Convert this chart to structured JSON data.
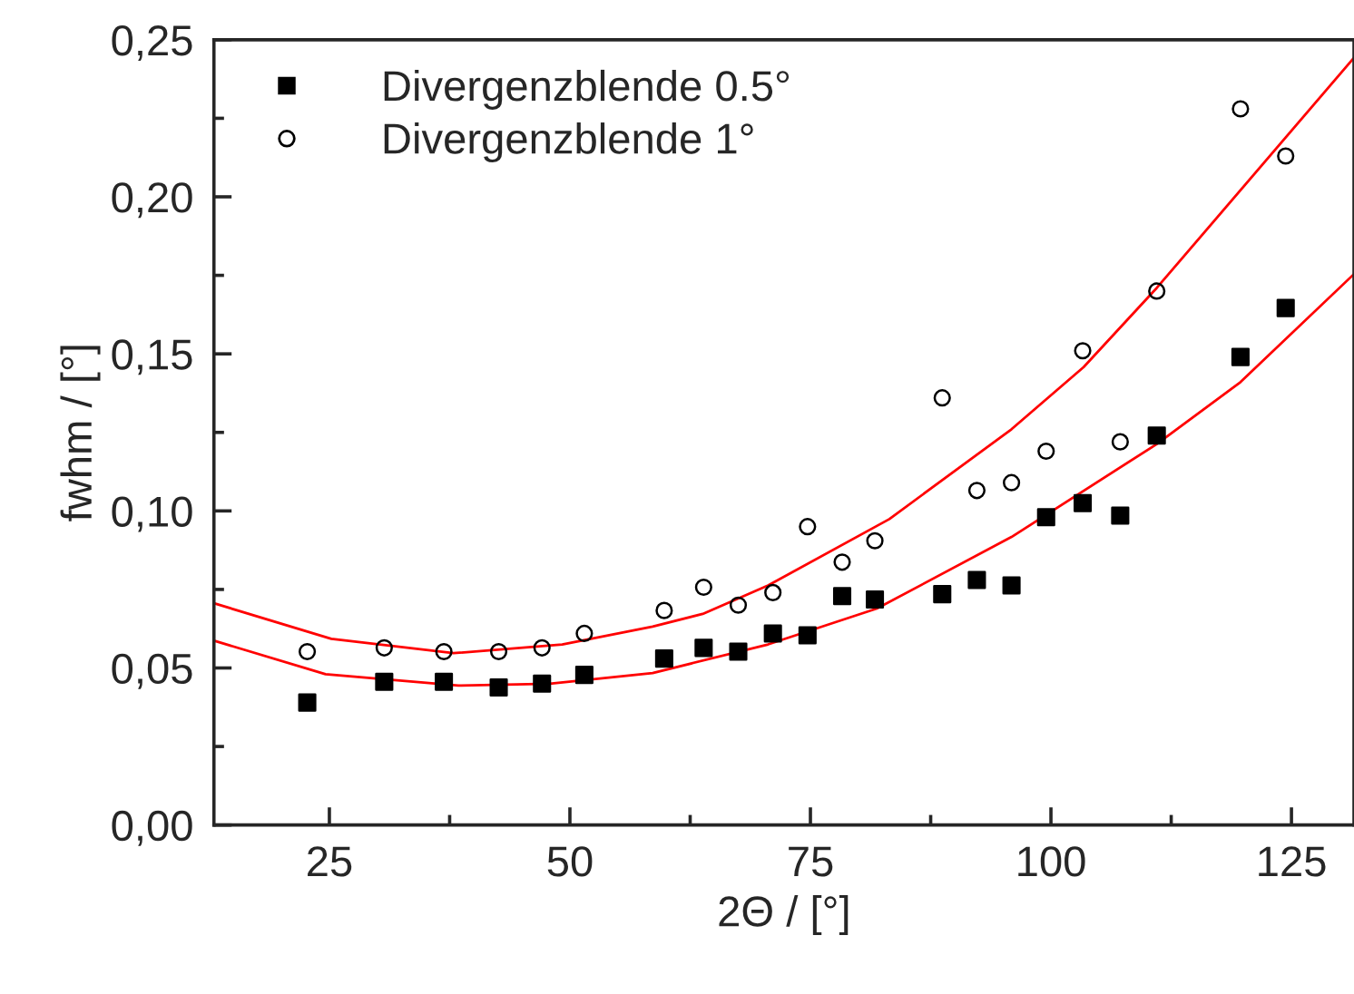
{
  "chart_data": {
    "type": "scatter",
    "xlabel": "2Θ / [°]",
    "ylabel": "fwhm / [°]",
    "legend": "top left",
    "grid": false,
    "xlim": [
      13,
      131.5
    ],
    "ylim": [
      0,
      0.25
    ],
    "xticks": [
      25,
      {
        "value": 37.5,
        "label": null
      },
      50,
      {
        "value": 62.5,
        "label": null
      },
      75,
      {
        "value": 87.5,
        "label": null
      },
      100,
      {
        "value": 112.5,
        "label": null
      },
      125
    ],
    "yticks": [
      {
        "value": 0,
        "label": "0,00"
      },
      {
        "value": 0.025,
        "label": null
      },
      {
        "value": 0.05,
        "label": "0,05"
      },
      {
        "value": 0.075,
        "label": null
      },
      {
        "value": 0.1,
        "label": "0,10"
      },
      {
        "value": 0.125,
        "label": null
      },
      {
        "value": 0.15,
        "label": "0,15"
      },
      {
        "value": 0.175,
        "label": null
      },
      {
        "value": 0.2,
        "label": "0,20"
      },
      {
        "value": 0.225,
        "label": null
      },
      {
        "value": 0.25,
        "label": "0,25"
      }
    ],
    "series": [
      {
        "name": "Divergenzblende 0.5°",
        "marker": "square",
        "color": "#000000",
        "x": [
          22.7,
          30.7,
          36.9,
          42.6,
          47.1,
          51.5,
          59.8,
          63.9,
          67.5,
          71.1,
          74.7,
          78.3,
          81.7,
          88.7,
          92.3,
          95.9,
          99.5,
          103.3,
          107.2,
          111.0,
          119.7,
          124.4
        ],
        "values": [
          0.039,
          0.0456,
          0.0456,
          0.0438,
          0.045,
          0.0478,
          0.053,
          0.0564,
          0.0552,
          0.061,
          0.0604,
          0.0729,
          0.0718,
          0.0735,
          0.078,
          0.0763,
          0.098,
          0.1025,
          0.0985,
          0.124,
          0.149,
          0.1646
        ]
      },
      {
        "name": "Divergenzblende 1°",
        "marker": "circle",
        "color": "#000000",
        "x": [
          22.7,
          30.7,
          36.9,
          42.6,
          47.1,
          51.5,
          59.8,
          63.9,
          67.5,
          71.1,
          74.7,
          78.3,
          81.7,
          88.7,
          92.3,
          95.9,
          99.5,
          103.3,
          107.2,
          111.0,
          119.7,
          124.4
        ],
        "values": [
          0.0552,
          0.0564,
          0.0552,
          0.0552,
          0.0564,
          0.061,
          0.0683,
          0.0757,
          0.07,
          0.074,
          0.095,
          0.0837,
          0.0905,
          0.136,
          0.1065,
          0.109,
          0.119,
          0.151,
          0.122,
          0.17,
          0.228,
          0.213
        ]
      },
      {
        "type": "line",
        "color": "#ff0000",
        "x": [
          13,
          25.2,
          37.9,
          49.2,
          58.6,
          63.8,
          70.6,
          83.2,
          95.9,
          103.4,
          111.0,
          131.5
        ],
        "values": [
          0.0706,
          0.0593,
          0.0547,
          0.0575,
          0.0632,
          0.0672,
          0.0763,
          0.0974,
          0.126,
          0.1458,
          0.171,
          0.2443
        ]
      },
      {
        "type": "line",
        "color": "#ff0000",
        "x": [
          13,
          24.6,
          38.4,
          47.9,
          58.6,
          70.6,
          81.9,
          95.9,
          111.0,
          119.7,
          131.5
        ],
        "values": [
          0.0587,
          0.048,
          0.0444,
          0.045,
          0.0484,
          0.0575,
          0.0689,
          0.0917,
          0.1213,
          0.141,
          0.1754
        ]
      }
    ]
  }
}
